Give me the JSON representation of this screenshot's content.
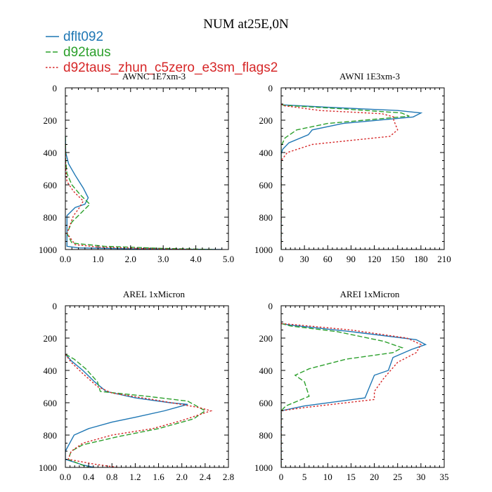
{
  "figure_title": "NUM at25E,0N",
  "legend": [
    {
      "name": "dflt092",
      "color": "#1f77b4",
      "dash": "solid"
    },
    {
      "name": "d92taus",
      "color": "#2ca02c",
      "dash": "dashed"
    },
    {
      "name": "d92taus_zhun_c5zero_e3sm_flags2",
      "color": "#d62728",
      "dash": "dotted"
    }
  ],
  "chart_data": [
    {
      "type": "line",
      "title": "AWNC  1E7xm-3",
      "xlim": [
        0,
        5
      ],
      "ylim": [
        1000,
        0
      ],
      "xticks": [
        "0.0",
        "1.0",
        "2.0",
        "3.0",
        "4.0",
        "5.0"
      ],
      "xtick_values": [
        0,
        1,
        2,
        3,
        4,
        5
      ],
      "yticks": [
        "0",
        "200",
        "400",
        "600",
        "800",
        "1000"
      ],
      "ytick_values": [
        0,
        200,
        400,
        600,
        800,
        1000
      ],
      "series": [
        {
          "name": "dflt092",
          "x": [
            0,
            0.01,
            0.1,
            0.3,
            0.55,
            0.7,
            0.6,
            0.3,
            0.05,
            0.05,
            0.4,
            2,
            4.8
          ],
          "y": [
            300,
            400,
            470,
            540,
            620,
            680,
            720,
            740,
            790,
            980,
            990,
            995,
            1000
          ]
        },
        {
          "name": "d92taus",
          "x": [
            0,
            0.01,
            0.05,
            0.2,
            0.45,
            0.75,
            0.5,
            0.2,
            0.05,
            0.2,
            1.2,
            3,
            4.6
          ],
          "y": [
            300,
            450,
            530,
            600,
            660,
            720,
            770,
            830,
            900,
            960,
            980,
            993,
            1000
          ]
        },
        {
          "name": "d92taus_zhun_c5zero_e3sm_flags2",
          "x": [
            0,
            0.01,
            0.05,
            0.25,
            0.55,
            0.4,
            0.25,
            0.05,
            0.3,
            1,
            2.5,
            4
          ],
          "y": [
            350,
            500,
            580,
            640,
            700,
            750,
            790,
            900,
            970,
            985,
            995,
            1000
          ]
        }
      ]
    },
    {
      "type": "line",
      "title": "AWNI  1E3xm-3",
      "xlim": [
        0,
        210
      ],
      "ylim": [
        1000,
        0
      ],
      "xticks": [
        "0",
        "30",
        "60",
        "90",
        "120",
        "150",
        "180",
        "210"
      ],
      "xtick_values": [
        0,
        30,
        60,
        90,
        120,
        150,
        180,
        210
      ],
      "yticks": [
        "0",
        "200",
        "400",
        "600",
        "800",
        "1000"
      ],
      "ytick_values": [
        0,
        200,
        400,
        600,
        800,
        1000
      ],
      "series": [
        {
          "name": "dflt092",
          "x": [
            0,
            2,
            60,
            150,
            180,
            170,
            80,
            40,
            35,
            10,
            2,
            0,
            0
          ],
          "y": [
            100,
            105,
            120,
            140,
            155,
            180,
            220,
            260,
            290,
            340,
            380,
            410,
            1000
          ]
        },
        {
          "name": "d92taus",
          "x": [
            0,
            3,
            80,
            155,
            165,
            60,
            20,
            5,
            0,
            0
          ],
          "y": [
            100,
            108,
            130,
            155,
            175,
            220,
            260,
            310,
            360,
            1000
          ]
        },
        {
          "name": "d92taus_zhun_c5zero_e3sm_flags2",
          "x": [
            0,
            3,
            50,
            130,
            145,
            145,
            150,
            140,
            40,
            8,
            0,
            0
          ],
          "y": [
            100,
            110,
            140,
            160,
            180,
            200,
            260,
            300,
            350,
            400,
            450,
            1000
          ]
        }
      ]
    },
    {
      "type": "line",
      "title": "AREL  1xMicron",
      "xlim": [
        0,
        2.8
      ],
      "ylim": [
        1000,
        0
      ],
      "xticks": [
        "0.0",
        "0.4",
        "0.8",
        "1.2",
        "1.6",
        "2.0",
        "2.4",
        "2.8"
      ],
      "xtick_values": [
        0,
        0.4,
        0.8,
        1.2,
        1.6,
        2,
        2.4,
        2.8
      ],
      "yticks": [
        "0",
        "200",
        "400",
        "600",
        "800",
        "1000"
      ],
      "ytick_values": [
        0,
        200,
        400,
        600,
        800,
        1000
      ],
      "series": [
        {
          "name": "dflt092",
          "x": [
            0,
            0.1,
            0.3,
            0.5,
            0.7,
            1.2,
            1.8,
            2.1,
            1.7,
            1.2,
            0.8,
            0.4,
            0.15,
            0,
            0,
            0.3,
            0.5
          ],
          "y": [
            300,
            340,
            400,
            470,
            530,
            570,
            600,
            610,
            650,
            690,
            720,
            760,
            800,
            900,
            950,
            985,
            1000
          ]
        },
        {
          "name": "d92taus",
          "x": [
            0,
            0.15,
            0.35,
            0.55,
            0.6,
            1.4,
            2.1,
            2.4,
            2.2,
            1.6,
            0.9,
            0.3,
            0.1,
            0.05,
            0.25,
            0.4
          ],
          "y": [
            300,
            330,
            390,
            470,
            530,
            560,
            590,
            650,
            700,
            760,
            810,
            860,
            900,
            950,
            980,
            1000
          ]
        },
        {
          "name": "d92taus_zhun_c5zero_e3sm_flags2",
          "x": [
            0,
            0.1,
            0.3,
            0.55,
            0.8,
            1.5,
            2.3,
            2.5,
            2.0,
            1.5,
            0.8,
            0.3,
            0.1,
            0.05,
            0.5,
            0.9
          ],
          "y": [
            300,
            350,
            420,
            500,
            540,
            580,
            630,
            650,
            710,
            760,
            800,
            850,
            900,
            950,
            980,
            1000
          ]
        }
      ]
    },
    {
      "type": "line",
      "title": "AREI  1xMicron",
      "xlim": [
        0,
        35
      ],
      "ylim": [
        1000,
        0
      ],
      "xticks": [
        "0",
        "5",
        "10",
        "15",
        "20",
        "25",
        "30",
        "35"
      ],
      "xtick_values": [
        0,
        5,
        10,
        15,
        20,
        25,
        30,
        35
      ],
      "yticks": [
        "0",
        "200",
        "400",
        "600",
        "800",
        "1000"
      ],
      "ytick_values": [
        0,
        200,
        400,
        600,
        800,
        1000
      ],
      "series": [
        {
          "name": "dflt092",
          "x": [
            0,
            2,
            15,
            29,
            31,
            28,
            24,
            23,
            20,
            19,
            18,
            5,
            0,
            0
          ],
          "y": [
            110,
            120,
            160,
            210,
            240,
            270,
            320,
            400,
            430,
            500,
            570,
            620,
            650,
            1000
          ]
        },
        {
          "name": "d92taus",
          "x": [
            0,
            2,
            12,
            22,
            26,
            24,
            14,
            6,
            3,
            5,
            6,
            1,
            0,
            0
          ],
          "y": [
            110,
            125,
            160,
            220,
            260,
            290,
            330,
            390,
            430,
            470,
            560,
            620,
            650,
            1000
          ]
        },
        {
          "name": "d92taus_zhun_c5zero_e3sm_flags2",
          "x": [
            0,
            2,
            15,
            27,
            30,
            29,
            25,
            22,
            20,
            20,
            5,
            0,
            0
          ],
          "y": [
            110,
            115,
            150,
            200,
            240,
            290,
            350,
            450,
            530,
            580,
            630,
            650,
            1000
          ]
        }
      ]
    }
  ]
}
